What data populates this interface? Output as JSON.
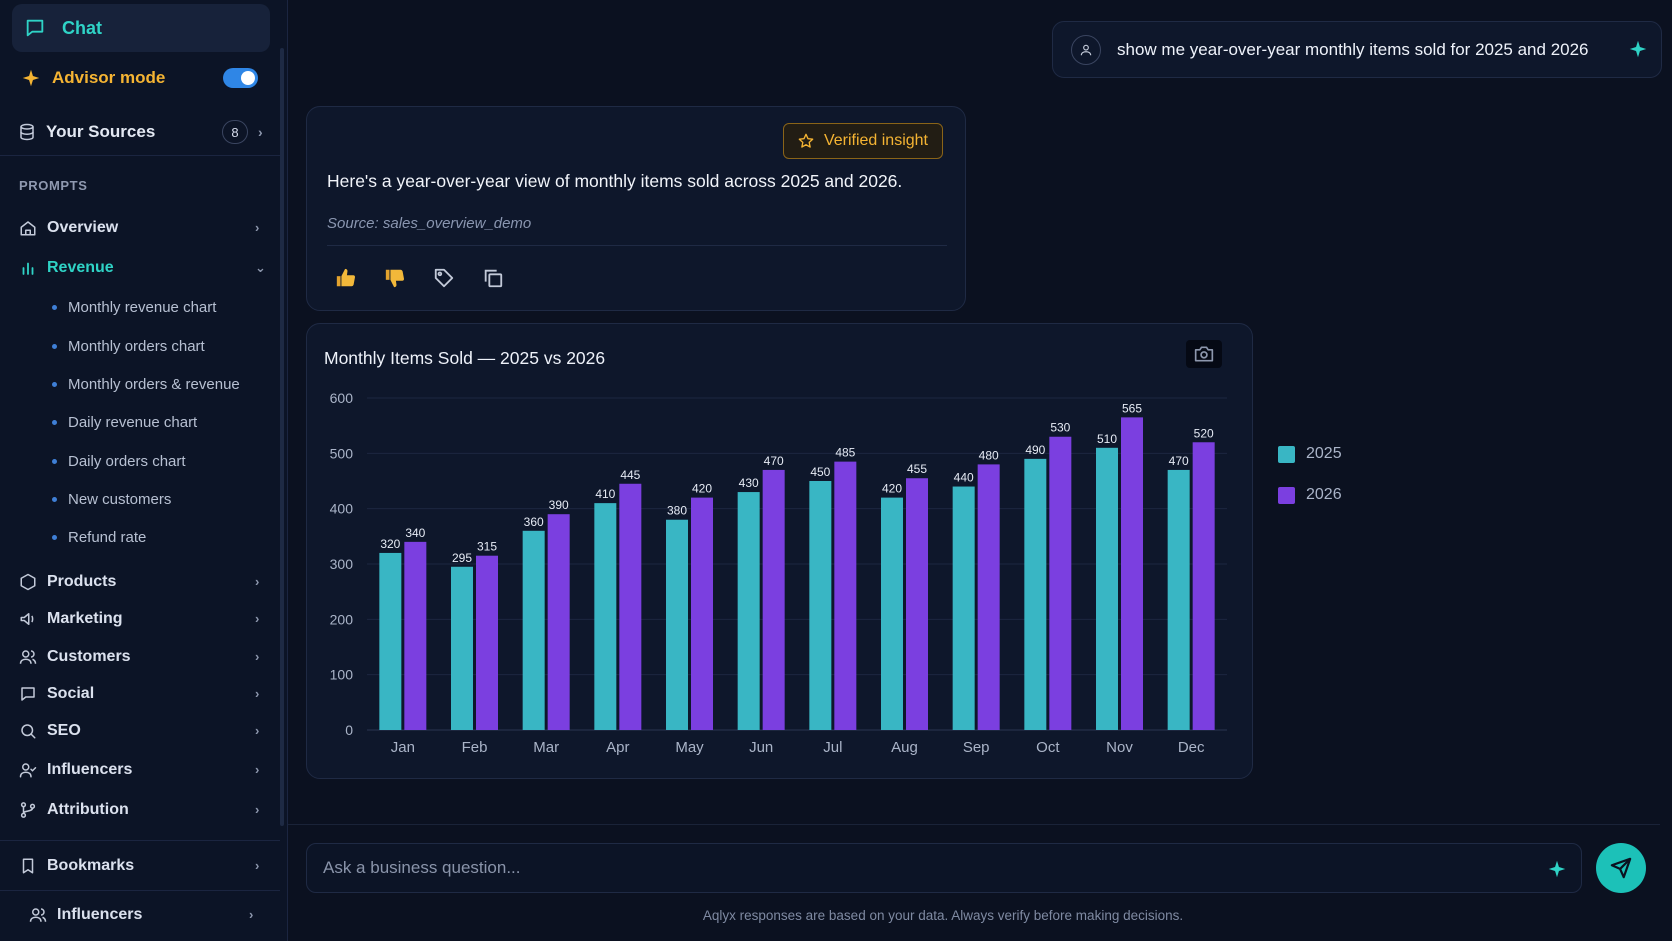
{
  "sidebar": {
    "chat_label": "Chat",
    "advisor_label": "Advisor mode",
    "sources_label": "Your Sources",
    "sources_count": "8",
    "prompts_heading": "PROMPTS",
    "nav": {
      "overview": "Overview",
      "revenue": "Revenue",
      "products": "Products",
      "marketing": "Marketing",
      "customers": "Customers",
      "social": "Social",
      "seo": "SEO",
      "influencers": "Influencers",
      "attribution": "Attribution"
    },
    "revenue_items": [
      "Monthly revenue chart",
      "Monthly orders chart",
      "Monthly orders & revenue",
      "Daily revenue chart",
      "Daily orders chart",
      "New customers",
      "Refund rate"
    ],
    "bookmarks_label": "Bookmarks",
    "footer_influencers": "Influencers"
  },
  "conversation": {
    "user_message": "show me year-over-year monthly items sold for 2025 and 2026",
    "verified_badge": "Verified insight",
    "ai_text": "Here's a year-over-year view of monthly items sold across 2025 and 2026.",
    "ai_source": "Source: sales_overview_demo"
  },
  "chart_data": {
    "type": "bar",
    "title": "Monthly Items Sold — 2025 vs 2026",
    "categories": [
      "Jan",
      "Feb",
      "Mar",
      "Apr",
      "May",
      "Jun",
      "Jul",
      "Aug",
      "Sep",
      "Oct",
      "Nov",
      "Dec"
    ],
    "series": [
      {
        "name": "2025",
        "color": "#39b6c4",
        "values": [
          320,
          295,
          360,
          410,
          380,
          430,
          450,
          420,
          440,
          490,
          510,
          470
        ]
      },
      {
        "name": "2026",
        "color": "#7b3fe0",
        "values": [
          340,
          315,
          390,
          445,
          420,
          470,
          485,
          455,
          480,
          530,
          565,
          520
        ]
      }
    ],
    "ylim": [
      0,
      600
    ],
    "yticks": [
      0,
      100,
      200,
      300,
      400,
      500,
      600
    ],
    "grid": true,
    "legend_placement": "right"
  },
  "composer": {
    "placeholder": "Ask a business question...",
    "disclaimer": "Aqlyx responses are based on your data. Always verify before making decisions."
  },
  "colors": {
    "accent": "#2fd3c6",
    "advisor": "#f5b433",
    "background": "#0b1120"
  }
}
